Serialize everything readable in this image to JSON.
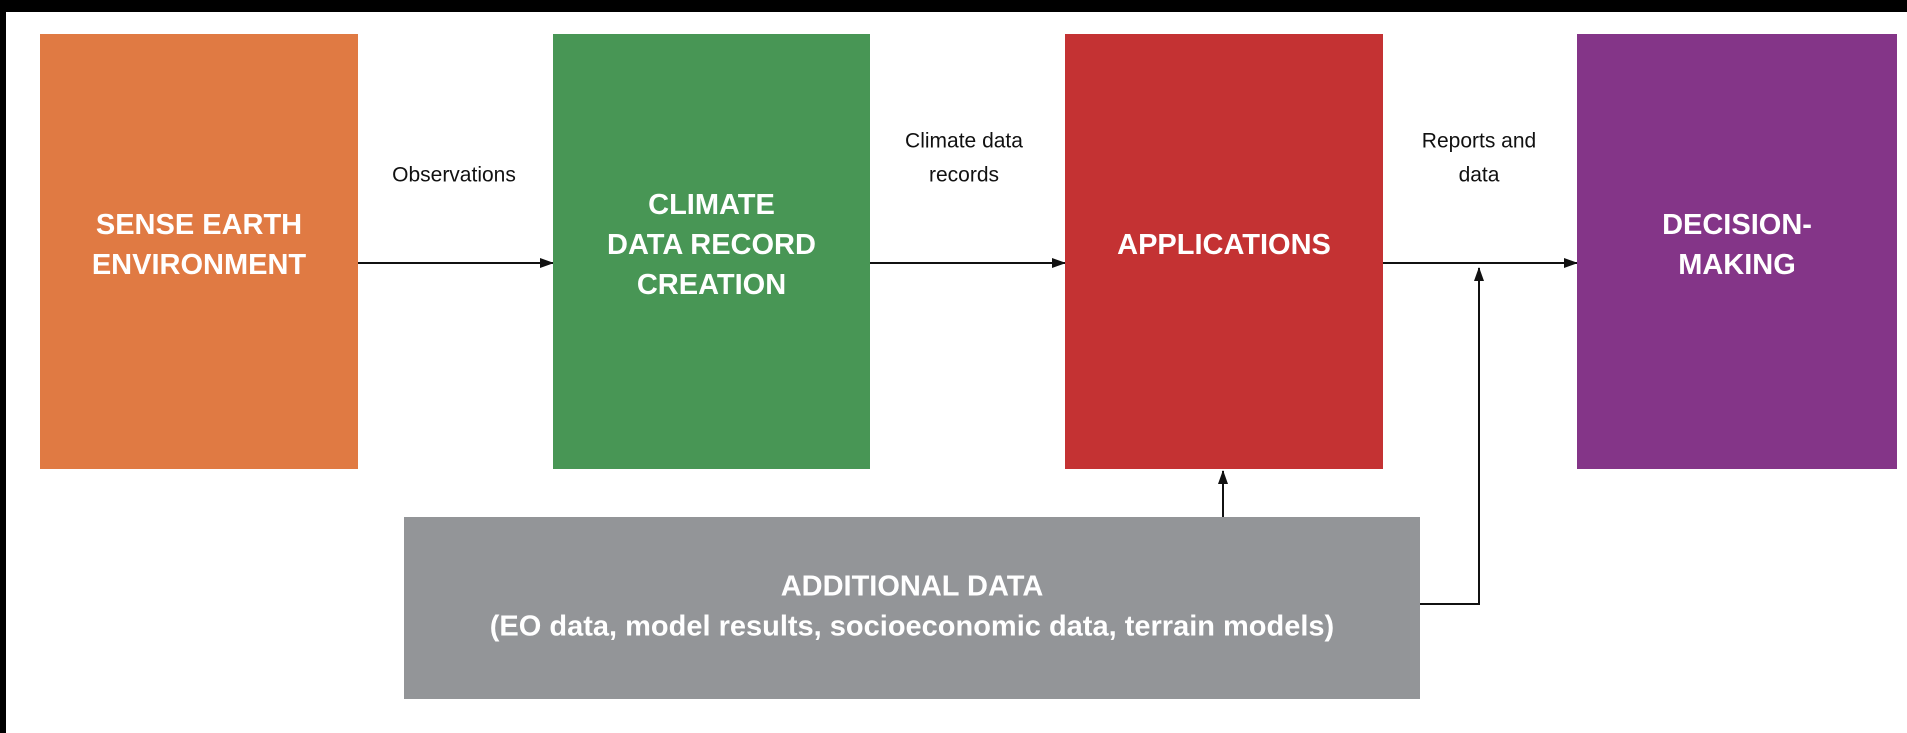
{
  "nodes": [
    {
      "lines": [
        "SENSE EARTH",
        "ENVIRONMENT"
      ],
      "color": "#e07a43"
    },
    {
      "lines": [
        "CLIMATE",
        "DATA RECORD",
        "CREATION"
      ],
      "color": "#489655"
    },
    {
      "lines": [
        "APPLICATIONS"
      ],
      "color": "#c43233"
    },
    {
      "lines": [
        "DECISION-",
        "MAKING"
      ],
      "color": "#843588"
    },
    {
      "lines": [
        "ADDITIONAL DATA",
        "(EO data, model results, socioeconomic data, terrain models)"
      ],
      "color": "#939598"
    }
  ],
  "edges": [
    {
      "lines": [
        "Observations"
      ]
    },
    {
      "lines": [
        "Climate data",
        "records"
      ]
    },
    {
      "lines": [
        "Reports and",
        "data"
      ]
    }
  ]
}
